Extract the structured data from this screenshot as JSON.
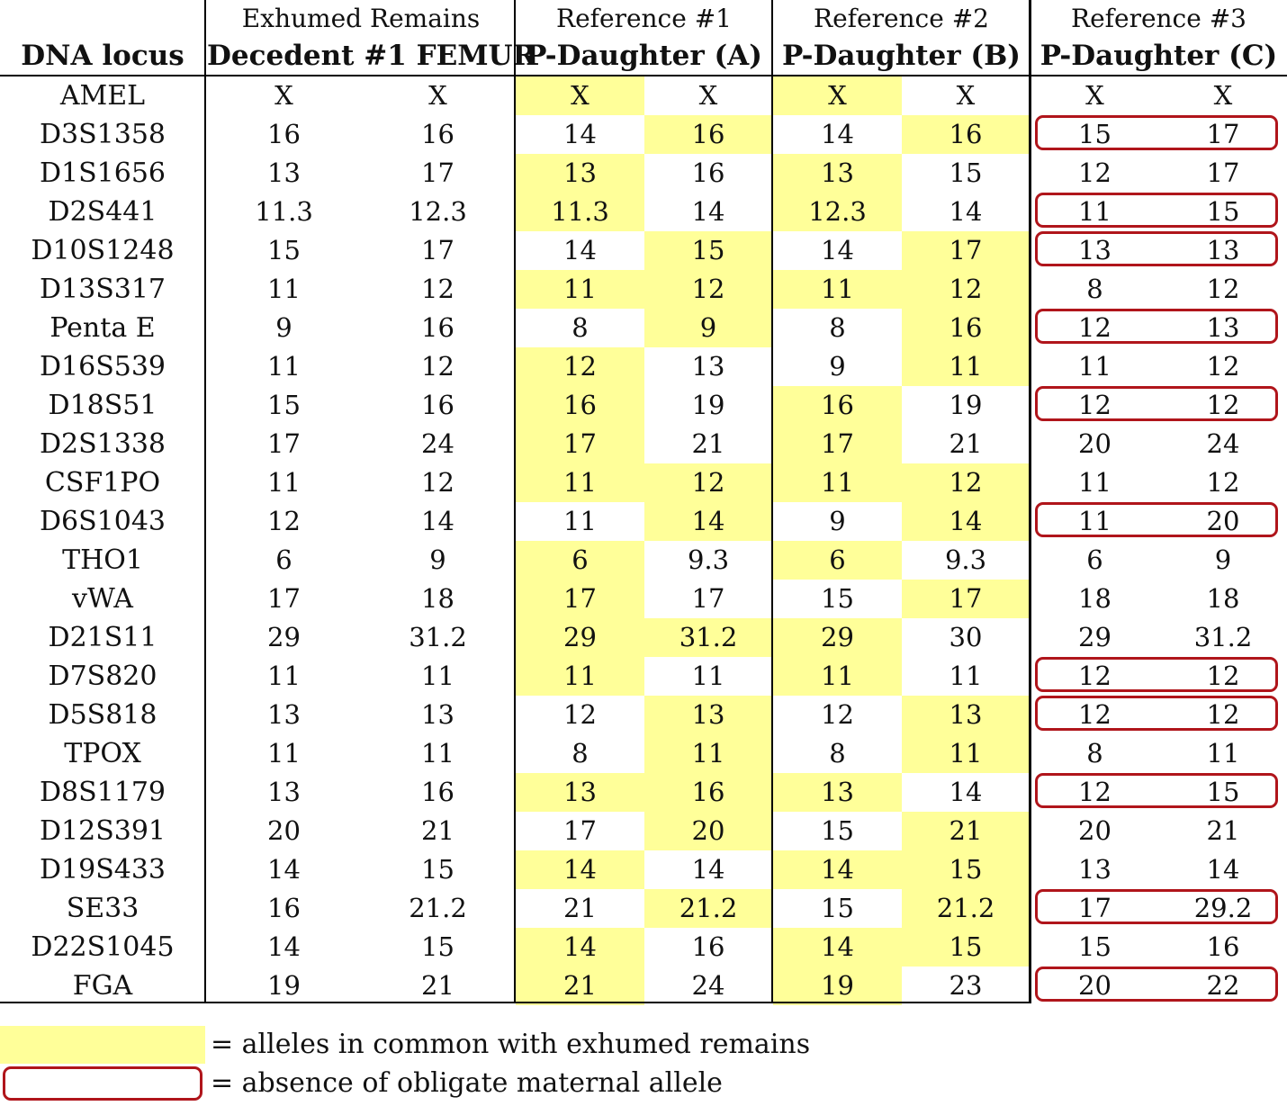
{
  "headers": {
    "locus": "DNA locus",
    "groups": [
      {
        "sub": "Exhumed Remains",
        "main": "Decedent #1 FEMUR"
      },
      {
        "sub": "Reference #1",
        "main": "P-Daughter (A)"
      },
      {
        "sub": "Reference #2",
        "main": "P-Daughter (B)"
      },
      {
        "sub": "Reference #3",
        "main": "P-Daughter (C)"
      }
    ]
  },
  "colors": {
    "common_allele_highlight": "#ffff99",
    "missing_maternal_allele_box": "#b0151b"
  },
  "rows": [
    {
      "locus": "AMEL",
      "alleles": [
        "X",
        "X",
        "X",
        "X",
        "X",
        "X",
        "X",
        "X"
      ],
      "highlight": [
        false,
        false,
        true,
        false,
        true,
        false,
        false,
        false
      ],
      "missing_maternal": false
    },
    {
      "locus": "D3S1358",
      "alleles": [
        "16",
        "16",
        "14",
        "16",
        "14",
        "16",
        "15",
        "17"
      ],
      "highlight": [
        false,
        false,
        false,
        true,
        false,
        true,
        false,
        false
      ],
      "missing_maternal": true
    },
    {
      "locus": "D1S1656",
      "alleles": [
        "13",
        "17",
        "13",
        "16",
        "13",
        "15",
        "12",
        "17"
      ],
      "highlight": [
        false,
        false,
        true,
        false,
        true,
        false,
        false,
        false
      ],
      "missing_maternal": false
    },
    {
      "locus": "D2S441",
      "alleles": [
        "11.3",
        "12.3",
        "11.3",
        "14",
        "12.3",
        "14",
        "11",
        "15"
      ],
      "highlight": [
        false,
        false,
        true,
        false,
        true,
        false,
        false,
        false
      ],
      "missing_maternal": true
    },
    {
      "locus": "D10S1248",
      "alleles": [
        "15",
        "17",
        "14",
        "15",
        "14",
        "17",
        "13",
        "13"
      ],
      "highlight": [
        false,
        false,
        false,
        true,
        false,
        true,
        false,
        false
      ],
      "missing_maternal": true
    },
    {
      "locus": "D13S317",
      "alleles": [
        "11",
        "12",
        "11",
        "12",
        "11",
        "12",
        "8",
        "12"
      ],
      "highlight": [
        false,
        false,
        true,
        true,
        true,
        true,
        false,
        false
      ],
      "missing_maternal": false
    },
    {
      "locus": "Penta E",
      "alleles": [
        "9",
        "16",
        "8",
        "9",
        "8",
        "16",
        "12",
        "13"
      ],
      "highlight": [
        false,
        false,
        false,
        true,
        false,
        true,
        false,
        false
      ],
      "missing_maternal": true
    },
    {
      "locus": "D16S539",
      "alleles": [
        "11",
        "12",
        "12",
        "13",
        "9",
        "11",
        "11",
        "12"
      ],
      "highlight": [
        false,
        false,
        true,
        false,
        false,
        true,
        false,
        false
      ],
      "missing_maternal": false
    },
    {
      "locus": "D18S51",
      "alleles": [
        "15",
        "16",
        "16",
        "19",
        "16",
        "19",
        "12",
        "12"
      ],
      "highlight": [
        false,
        false,
        true,
        false,
        true,
        false,
        false,
        false
      ],
      "missing_maternal": true
    },
    {
      "locus": "D2S1338",
      "alleles": [
        "17",
        "24",
        "17",
        "21",
        "17",
        "21",
        "20",
        "24"
      ],
      "highlight": [
        false,
        false,
        true,
        false,
        true,
        false,
        false,
        false
      ],
      "missing_maternal": false
    },
    {
      "locus": "CSF1PO",
      "alleles": [
        "11",
        "12",
        "11",
        "12",
        "11",
        "12",
        "11",
        "12"
      ],
      "highlight": [
        false,
        false,
        true,
        true,
        true,
        true,
        false,
        false
      ],
      "missing_maternal": false
    },
    {
      "locus": "D6S1043",
      "alleles": [
        "12",
        "14",
        "11",
        "14",
        "9",
        "14",
        "11",
        "20"
      ],
      "highlight": [
        false,
        false,
        false,
        true,
        false,
        true,
        false,
        false
      ],
      "missing_maternal": true
    },
    {
      "locus": "THO1",
      "alleles": [
        "6",
        "9",
        "6",
        "9.3",
        "6",
        "9.3",
        "6",
        "9"
      ],
      "highlight": [
        false,
        false,
        true,
        false,
        true,
        false,
        false,
        false
      ],
      "missing_maternal": false
    },
    {
      "locus": "vWA",
      "alleles": [
        "17",
        "18",
        "17",
        "17",
        "15",
        "17",
        "18",
        "18"
      ],
      "highlight": [
        false,
        false,
        true,
        false,
        false,
        true,
        false,
        false
      ],
      "missing_maternal": false
    },
    {
      "locus": "D21S11",
      "alleles": [
        "29",
        "31.2",
        "29",
        "31.2",
        "29",
        "30",
        "29",
        "31.2"
      ],
      "highlight": [
        false,
        false,
        true,
        true,
        true,
        false,
        false,
        false
      ],
      "missing_maternal": false
    },
    {
      "locus": "D7S820",
      "alleles": [
        "11",
        "11",
        "11",
        "11",
        "11",
        "11",
        "12",
        "12"
      ],
      "highlight": [
        false,
        false,
        true,
        false,
        true,
        false,
        false,
        false
      ],
      "missing_maternal": true
    },
    {
      "locus": "D5S818",
      "alleles": [
        "13",
        "13",
        "12",
        "13",
        "12",
        "13",
        "12",
        "12"
      ],
      "highlight": [
        false,
        false,
        false,
        true,
        false,
        true,
        false,
        false
      ],
      "missing_maternal": true
    },
    {
      "locus": "TPOX",
      "alleles": [
        "11",
        "11",
        "8",
        "11",
        "8",
        "11",
        "8",
        "11"
      ],
      "highlight": [
        false,
        false,
        false,
        true,
        false,
        true,
        false,
        false
      ],
      "missing_maternal": false
    },
    {
      "locus": "D8S1179",
      "alleles": [
        "13",
        "16",
        "13",
        "16",
        "13",
        "14",
        "12",
        "15"
      ],
      "highlight": [
        false,
        false,
        true,
        true,
        true,
        false,
        false,
        false
      ],
      "missing_maternal": true
    },
    {
      "locus": "D12S391",
      "alleles": [
        "20",
        "21",
        "17",
        "20",
        "15",
        "21",
        "20",
        "21"
      ],
      "highlight": [
        false,
        false,
        false,
        true,
        false,
        true,
        false,
        false
      ],
      "missing_maternal": false
    },
    {
      "locus": "D19S433",
      "alleles": [
        "14",
        "15",
        "14",
        "14",
        "14",
        "15",
        "13",
        "14"
      ],
      "highlight": [
        false,
        false,
        true,
        false,
        true,
        true,
        false,
        false
      ],
      "missing_maternal": false
    },
    {
      "locus": "SE33",
      "alleles": [
        "16",
        "21.2",
        "21",
        "21.2",
        "15",
        "21.2",
        "17",
        "29.2"
      ],
      "highlight": [
        false,
        false,
        false,
        true,
        false,
        true,
        false,
        false
      ],
      "missing_maternal": true
    },
    {
      "locus": "D22S1045",
      "alleles": [
        "14",
        "15",
        "14",
        "16",
        "14",
        "15",
        "15",
        "16"
      ],
      "highlight": [
        false,
        false,
        true,
        false,
        true,
        true,
        false,
        false
      ],
      "missing_maternal": false
    },
    {
      "locus": "FGA",
      "alleles": [
        "19",
        "21",
        "21",
        "24",
        "19",
        "23",
        "20",
        "22"
      ],
      "highlight": [
        false,
        false,
        true,
        false,
        true,
        false,
        false,
        false
      ],
      "missing_maternal": true
    }
  ],
  "legend": {
    "highlight_text": "= alleles in common with exhumed remains",
    "box_text": "= absence of obligate maternal allele"
  }
}
